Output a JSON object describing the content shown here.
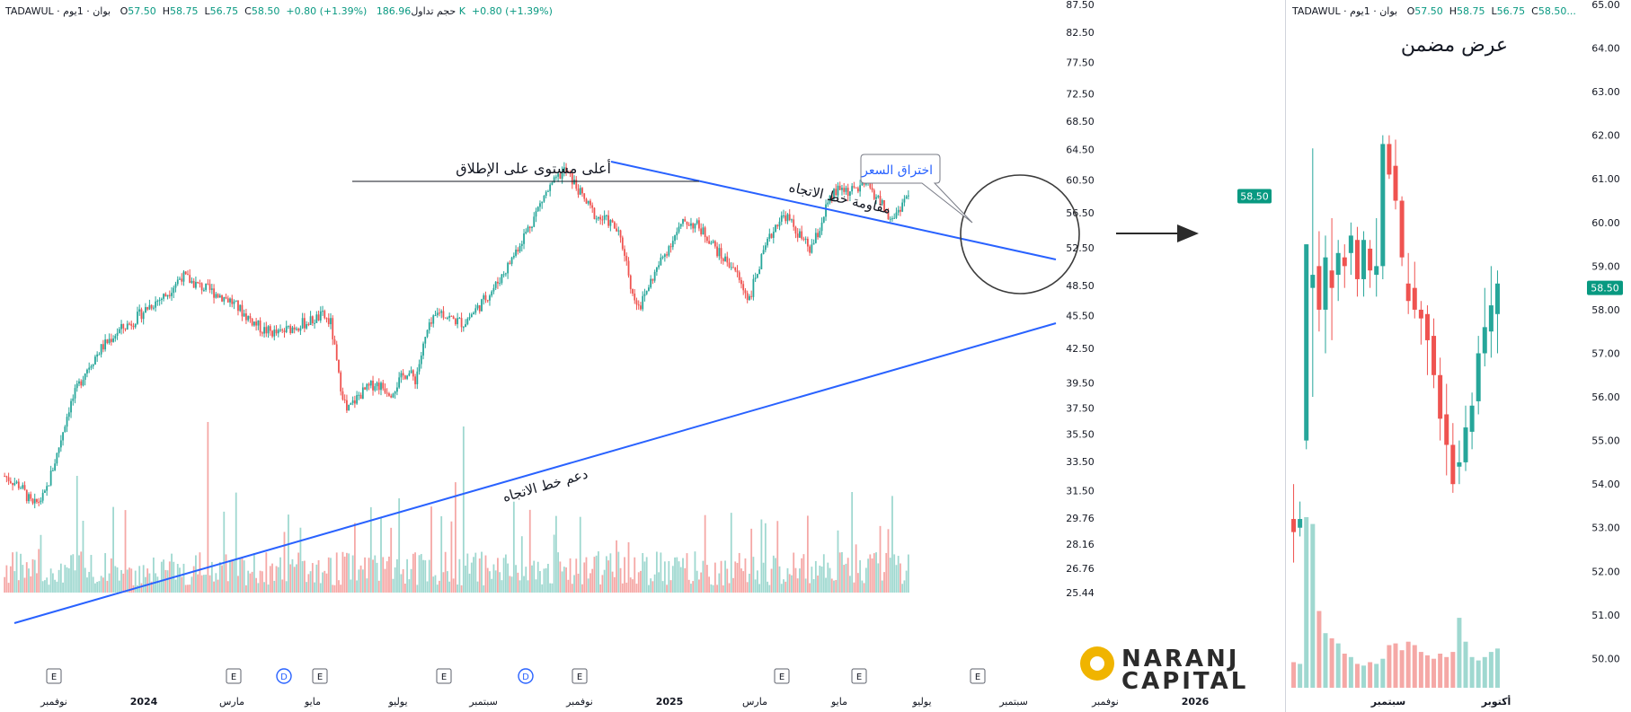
{
  "colors": {
    "up": "#26a69a",
    "down": "#ef5350",
    "up_vol": "#9fd8d0",
    "down_vol": "#f5a8a6",
    "trendline": "#2962ff",
    "price_badge": "#089981",
    "logo_gold": "#f0b400",
    "logo_text": "#2b2b2b",
    "axis_text": "#131722"
  },
  "main_header": {
    "symbol": "TADAWUL · بوان · 1يوم",
    "open_label": "O",
    "open": "57.50",
    "high_label": "H",
    "high": "58.75",
    "low_label": "L",
    "low": "56.75",
    "close_label": "C",
    "close": "58.50",
    "change": "+0.80 (+1.39%)",
    "volume_label": "حجم تداول",
    "volume": "186.96 K",
    "volume_change": "+0.80 (+1.39%)"
  },
  "inset_header": {
    "symbol": "TADAWUL · بوان · 1يوم",
    "open_label": "O",
    "open": "57.50",
    "high_label": "H",
    "high": "58.75",
    "low_label": "L",
    "low": "56.75",
    "close_label": "C",
    "close": "58.50..."
  },
  "annotations": {
    "ath_label": "أعلى مستوى على الإطلاق",
    "resistance_label": "مقاومة خط الاتجاه",
    "support_label": "دعم خط الاتجاه",
    "breakout_callout": "اختراق السعر",
    "inset_title": "عرض مضمن"
  },
  "logo": {
    "line1": "NARANJ",
    "line2": "CAPITAL"
  },
  "event_markers": [
    "E",
    "E",
    "D",
    "E",
    "E",
    "D",
    "E",
    "E",
    "E",
    "E"
  ],
  "chart_data": [
    {
      "type": "candlestick",
      "id": "main",
      "title": "",
      "xlabel": "",
      "ylabel": "",
      "ylim": [
        25.44,
        87.5
      ],
      "scale": "log",
      "grid": false,
      "y_ticks": [
        "87.50",
        "82.50",
        "77.50",
        "72.50",
        "68.50",
        "64.50",
        "60.50",
        "56.50",
        "52.50",
        "48.50",
        "45.50",
        "42.50",
        "39.50",
        "37.50",
        "35.50",
        "33.50",
        "31.50",
        "29.76",
        "28.16",
        "26.76",
        "25.44"
      ],
      "last_price": "58.50",
      "x_ticks": [
        "نوفمبر",
        "2024",
        "مارس",
        "مايو",
        "يوليو",
        "سبتمبر",
        "نوفمبر",
        "2025",
        "مارس",
        "مايو",
        "يوليو",
        "سبتمبر",
        "نوفمبر",
        "2026"
      ],
      "price_path_approx": [
        [
          0,
          32.5
        ],
        [
          8,
          31.8
        ],
        [
          14,
          30.5
        ],
        [
          20,
          31.2
        ],
        [
          26,
          34.0
        ],
        [
          32,
          37.5
        ],
        [
          40,
          40.5
        ],
        [
          48,
          42.5
        ],
        [
          56,
          44.0
        ],
        [
          64,
          45.0
        ],
        [
          72,
          46.5
        ],
        [
          80,
          47.5
        ],
        [
          88,
          49.5
        ],
        [
          96,
          48.5
        ],
        [
          104,
          47.8
        ],
        [
          112,
          47.0
        ],
        [
          120,
          45.5
        ],
        [
          128,
          44.2
        ],
        [
          136,
          43.8
        ],
        [
          144,
          44.5
        ],
        [
          152,
          45.0
        ],
        [
          158,
          45.5
        ],
        [
          162,
          44.8
        ],
        [
          166,
          40.0
        ],
        [
          170,
          37.2
        ],
        [
          176,
          38.5
        ],
        [
          184,
          39.5
        ],
        [
          192,
          38.8
        ],
        [
          200,
          40.5
        ],
        [
          204,
          39.8
        ],
        [
          210,
          44.0
        ],
        [
          216,
          46.0
        ],
        [
          222,
          45.2
        ],
        [
          228,
          44.8
        ],
        [
          236,
          46.5
        ],
        [
          244,
          48.5
        ],
        [
          250,
          50.5
        ],
        [
          256,
          53.0
        ],
        [
          262,
          55.5
        ],
        [
          268,
          58.5
        ],
        [
          274,
          60.5
        ],
        [
          278,
          61.8
        ],
        [
          282,
          60.5
        ],
        [
          288,
          58.0
        ],
        [
          294,
          56.0
        ],
        [
          300,
          55.5
        ],
        [
          304,
          54.5
        ],
        [
          308,
          52.0
        ],
        [
          312,
          47.5
        ],
        [
          316,
          46.5
        ],
        [
          320,
          48.5
        ],
        [
          326,
          51.0
        ],
        [
          332,
          53.5
        ],
        [
          338,
          55.5
        ],
        [
          344,
          55.0
        ],
        [
          350,
          53.5
        ],
        [
          356,
          51.5
        ],
        [
          362,
          50.5
        ],
        [
          366,
          48.5
        ],
        [
          370,
          47.2
        ],
        [
          374,
          50.0
        ],
        [
          380,
          53.5
        ],
        [
          384,
          55.5
        ],
        [
          388,
          56.2
        ],
        [
          392,
          54.8
        ],
        [
          396,
          53.5
        ],
        [
          400,
          52.2
        ],
        [
          404,
          54.0
        ],
        [
          408,
          57.0
        ],
        [
          412,
          58.8
        ],
        [
          416,
          59.5
        ],
        [
          420,
          59.0
        ],
        [
          424,
          59.5
        ],
        [
          428,
          60.0
        ],
        [
          432,
          58.8
        ],
        [
          436,
          57.5
        ],
        [
          440,
          55.5
        ],
        [
          444,
          56.8
        ],
        [
          448,
          58.5
        ]
      ],
      "volume_note": "daily volume histogram, spikes near 2024-03, 2024-09, 2025-09"
    },
    {
      "type": "candlestick",
      "id": "inset",
      "title": "عرض مضمن",
      "ylim": [
        49.7,
        65.0
      ],
      "grid": false,
      "y_ticks": [
        "65.00",
        "64.00",
        "63.00",
        "62.00",
        "61.00",
        "60.00",
        "59.00",
        "58.00",
        "57.00",
        "56.00",
        "55.00",
        "54.00",
        "53.00",
        "52.00",
        "51.00",
        "50.00"
      ],
      "last_price": "58.50",
      "x_ticks": [
        "سبتمبر",
        "أكتوبر"
      ],
      "candles": [
        {
          "o": 53.2,
          "h": 54.0,
          "l": 52.2,
          "c": 52.9
        },
        {
          "o": 53.0,
          "h": 53.6,
          "l": 52.8,
          "c": 53.2
        },
        {
          "o": 55.0,
          "h": 59.5,
          "l": 54.8,
          "c": 59.5
        },
        {
          "o": 58.5,
          "h": 61.7,
          "l": 56.0,
          "c": 58.8
        },
        {
          "o": 59.0,
          "h": 59.8,
          "l": 57.5,
          "c": 58.0
        },
        {
          "o": 58.0,
          "h": 59.7,
          "l": 57.0,
          "c": 59.2
        },
        {
          "o": 58.9,
          "h": 60.1,
          "l": 57.3,
          "c": 58.5
        },
        {
          "o": 58.8,
          "h": 59.6,
          "l": 58.2,
          "c": 59.3
        },
        {
          "o": 59.2,
          "h": 59.5,
          "l": 58.5,
          "c": 59.0
        },
        {
          "o": 59.3,
          "h": 60.0,
          "l": 58.8,
          "c": 59.7
        },
        {
          "o": 59.6,
          "h": 59.9,
          "l": 58.3,
          "c": 58.7
        },
        {
          "o": 58.7,
          "h": 59.8,
          "l": 58.3,
          "c": 59.6
        },
        {
          "o": 59.4,
          "h": 59.6,
          "l": 58.5,
          "c": 58.9
        },
        {
          "o": 58.8,
          "h": 60.1,
          "l": 58.3,
          "c": 59.0
        },
        {
          "o": 59.0,
          "h": 62.0,
          "l": 58.7,
          "c": 61.8
        },
        {
          "o": 61.8,
          "h": 62.0,
          "l": 61.0,
          "c": 61.1
        },
        {
          "o": 61.3,
          "h": 61.9,
          "l": 60.3,
          "c": 60.5
        },
        {
          "o": 60.5,
          "h": 60.6,
          "l": 59.0,
          "c": 59.2
        },
        {
          "o": 58.6,
          "h": 59.3,
          "l": 57.9,
          "c": 58.2
        },
        {
          "o": 58.5,
          "h": 59.1,
          "l": 57.8,
          "c": 58.0
        },
        {
          "o": 58.0,
          "h": 58.2,
          "l": 57.2,
          "c": 57.8
        },
        {
          "o": 57.9,
          "h": 58.1,
          "l": 56.5,
          "c": 57.3
        },
        {
          "o": 57.4,
          "h": 57.8,
          "l": 56.2,
          "c": 56.5
        },
        {
          "o": 56.5,
          "h": 56.9,
          "l": 55.0,
          "c": 55.5
        },
        {
          "o": 55.6,
          "h": 56.3,
          "l": 54.2,
          "c": 54.9
        },
        {
          "o": 54.9,
          "h": 55.4,
          "l": 53.8,
          "c": 54.0
        },
        {
          "o": 54.4,
          "h": 55.0,
          "l": 54.0,
          "c": 54.5
        },
        {
          "o": 54.5,
          "h": 55.8,
          "l": 54.3,
          "c": 55.3
        },
        {
          "o": 55.2,
          "h": 56.1,
          "l": 54.8,
          "c": 55.8
        },
        {
          "o": 55.9,
          "h": 57.4,
          "l": 55.6,
          "c": 57.0
        },
        {
          "o": 57.0,
          "h": 58.5,
          "l": 56.7,
          "c": 57.6
        },
        {
          "o": 57.5,
          "h": 59.0,
          "l": 56.9,
          "c": 58.1
        },
        {
          "o": 57.9,
          "h": 58.9,
          "l": 57.0,
          "c": 58.6
        }
      ],
      "volumes": [
        0.15,
        0.14,
        1.0,
        0.96,
        0.45,
        0.32,
        0.29,
        0.26,
        0.2,
        0.18,
        0.14,
        0.13,
        0.15,
        0.14,
        0.17,
        0.25,
        0.26,
        0.22,
        0.27,
        0.25,
        0.21,
        0.19,
        0.17,
        0.2,
        0.18,
        0.21,
        0.41,
        0.27,
        0.18,
        0.16,
        0.18,
        0.21,
        0.23
      ]
    }
  ]
}
